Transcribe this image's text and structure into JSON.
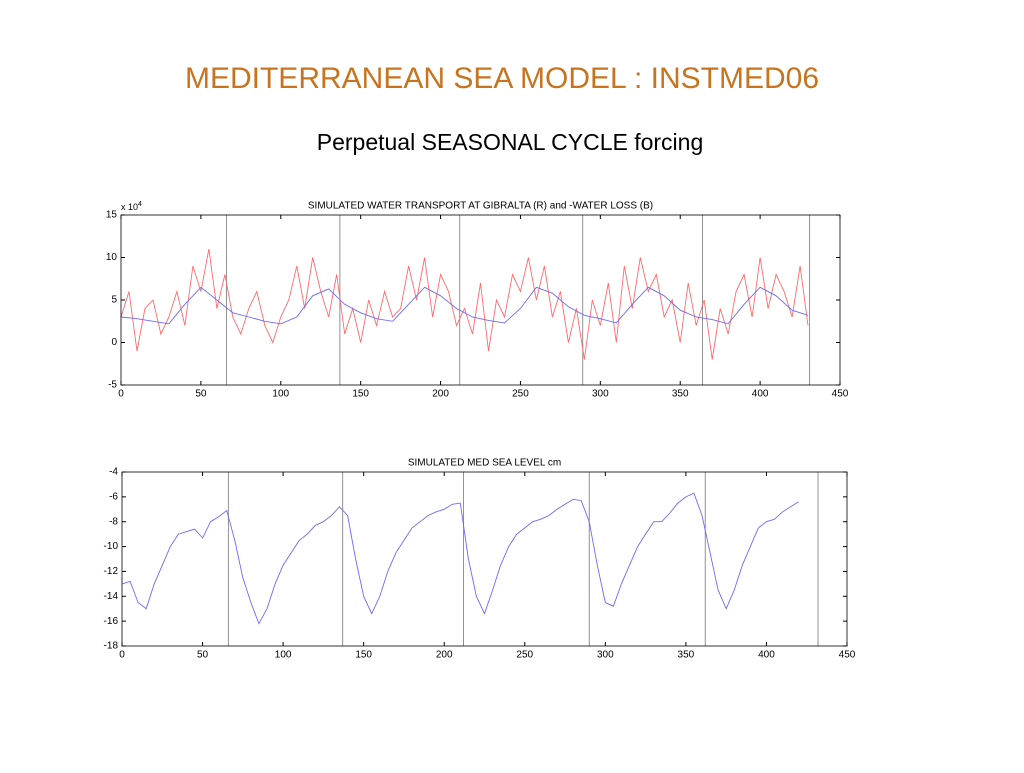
{
  "header": {
    "title": "MEDITERRANEAN SEA MODEL : INSTMED06",
    "subtitle": "Perpetual SEASONAL CYCLE forcing"
  },
  "chart_data": [
    {
      "type": "line",
      "title": "SIMULATED WATER TRANSPORT AT GIBRALTA (R) and -WATER LOSS (B)",
      "yscale_label": "x 10",
      "yscale_exponent": "4",
      "xlim": [
        0,
        450
      ],
      "xticks": [
        0,
        50,
        100,
        150,
        200,
        250,
        300,
        350,
        400,
        450
      ],
      "ylim": [
        -5,
        15
      ],
      "yticks": [
        -5,
        0,
        5,
        10,
        15
      ],
      "vlines": [
        66,
        137,
        212,
        289,
        364,
        431
      ],
      "series": [
        {
          "color": "#ff6a6a",
          "x": [
            0,
            5,
            10,
            15,
            20,
            25,
            30,
            35,
            40,
            45,
            50,
            55,
            60,
            65,
            70,
            75,
            80,
            85,
            90,
            95,
            100,
            105,
            110,
            115,
            120,
            125,
            130,
            135,
            140,
            145,
            150,
            155,
            160,
            165,
            170,
            175,
            180,
            185,
            190,
            195,
            200,
            205,
            210,
            215,
            220,
            225,
            230,
            235,
            240,
            245,
            250,
            255,
            260,
            265,
            270,
            275,
            280,
            285,
            290,
            295,
            300,
            305,
            310,
            315,
            320,
            325,
            330,
            335,
            340,
            345,
            350,
            355,
            360,
            365,
            370,
            375,
            380,
            385,
            390,
            395,
            400,
            405,
            410,
            415,
            420,
            425,
            430
          ],
          "values": [
            3,
            6,
            -1,
            4,
            5,
            1,
            3,
            6,
            2,
            9,
            6,
            11,
            4,
            8,
            3,
            1,
            4,
            6,
            2,
            0,
            3,
            5,
            9,
            4,
            10,
            6,
            3,
            8,
            1,
            4,
            0,
            5,
            2,
            6,
            3,
            4,
            9,
            5,
            10,
            3,
            8,
            6,
            2,
            4,
            1,
            7,
            -1,
            5,
            3,
            8,
            6,
            10,
            5,
            9,
            3,
            6,
            0,
            4,
            -2,
            5,
            2,
            7,
            0,
            9,
            4,
            10,
            6,
            8,
            3,
            5,
            0,
            7,
            2,
            5,
            -2,
            4,
            1,
            6,
            8,
            3,
            10,
            4,
            8,
            6,
            3,
            9,
            2
          ]
        },
        {
          "color": "#6a6aff",
          "x": [
            0,
            10,
            20,
            30,
            40,
            50,
            60,
            70,
            80,
            90,
            100,
            110,
            120,
            130,
            140,
            150,
            160,
            170,
            180,
            190,
            200,
            210,
            220,
            230,
            240,
            250,
            260,
            270,
            280,
            290,
            300,
            310,
            320,
            330,
            340,
            350,
            360,
            370,
            380,
            390,
            400,
            410,
            420,
            430
          ],
          "values": [
            3,
            2.8,
            2.5,
            2.2,
            4.5,
            6.5,
            5,
            3.5,
            3,
            2.5,
            2.2,
            3,
            5.5,
            6.3,
            4.5,
            3.5,
            2.8,
            2.5,
            4.5,
            6.5,
            5.5,
            4,
            3,
            2.6,
            2.3,
            4,
            6.5,
            5.8,
            4.2,
            3.2,
            2.8,
            2.3,
            4.5,
            6.5,
            5.5,
            3.8,
            3,
            2.7,
            2.2,
            4.5,
            6.5,
            5.5,
            3.8,
            3.2
          ]
        }
      ]
    },
    {
      "type": "line",
      "title": "SIMULATED MED SEA LEVEL  cm",
      "xlim": [
        0,
        450
      ],
      "xticks": [
        0,
        50,
        100,
        150,
        200,
        250,
        300,
        350,
        400,
        450
      ],
      "ylim": [
        -18,
        -4
      ],
      "yticks": [
        -18,
        -16,
        -14,
        -12,
        -10,
        -8,
        -6,
        -4
      ],
      "vlines": [
        66,
        137,
        212,
        290,
        362,
        432
      ],
      "series": [
        {
          "color": "#6a6aff",
          "x": [
            0,
            5,
            10,
            15,
            20,
            25,
            30,
            35,
            40,
            45,
            50,
            55,
            60,
            65,
            70,
            75,
            80,
            85,
            90,
            95,
            100,
            105,
            110,
            115,
            120,
            125,
            130,
            135,
            140,
            145,
            150,
            155,
            160,
            165,
            170,
            175,
            180,
            185,
            190,
            195,
            200,
            205,
            210,
            215,
            220,
            225,
            230,
            235,
            240,
            245,
            250,
            255,
            260,
            265,
            270,
            275,
            280,
            285,
            290,
            295,
            300,
            305,
            310,
            315,
            320,
            325,
            330,
            335,
            340,
            345,
            350,
            355,
            360,
            365,
            370,
            375,
            380,
            385,
            390,
            395,
            400,
            405,
            410,
            415,
            420
          ],
          "values": [
            -13,
            -12.8,
            -14.5,
            -15,
            -13,
            -11.5,
            -10,
            -9,
            -8.8,
            -8.6,
            -9.3,
            -8,
            -7.6,
            -7.1,
            -9.5,
            -12.5,
            -14.5,
            -16.2,
            -15,
            -13,
            -11.5,
            -10.5,
            -9.5,
            -9,
            -8.3,
            -8,
            -7.5,
            -6.8,
            -7.5,
            -11,
            -14,
            -15.4,
            -14,
            -12,
            -10.5,
            -9.5,
            -8.5,
            -8,
            -7.5,
            -7.2,
            -7,
            -6.6,
            -6.5,
            -11,
            -14,
            -15.4,
            -13.5,
            -11.5,
            -10,
            -9,
            -8.5,
            -8,
            -7.8,
            -7.5,
            -7,
            -6.6,
            -6.2,
            -6.3,
            -8,
            -11.5,
            -14.5,
            -14.8,
            -13,
            -11.5,
            -10,
            -9,
            -8,
            -8,
            -7.3,
            -6.5,
            -6,
            -5.7,
            -7.5,
            -10.5,
            -13.5,
            -15,
            -13.5,
            -11.5,
            -10,
            -8.5,
            -8,
            -7.8,
            -7.2,
            -6.8,
            -6.4
          ]
        }
      ]
    }
  ]
}
